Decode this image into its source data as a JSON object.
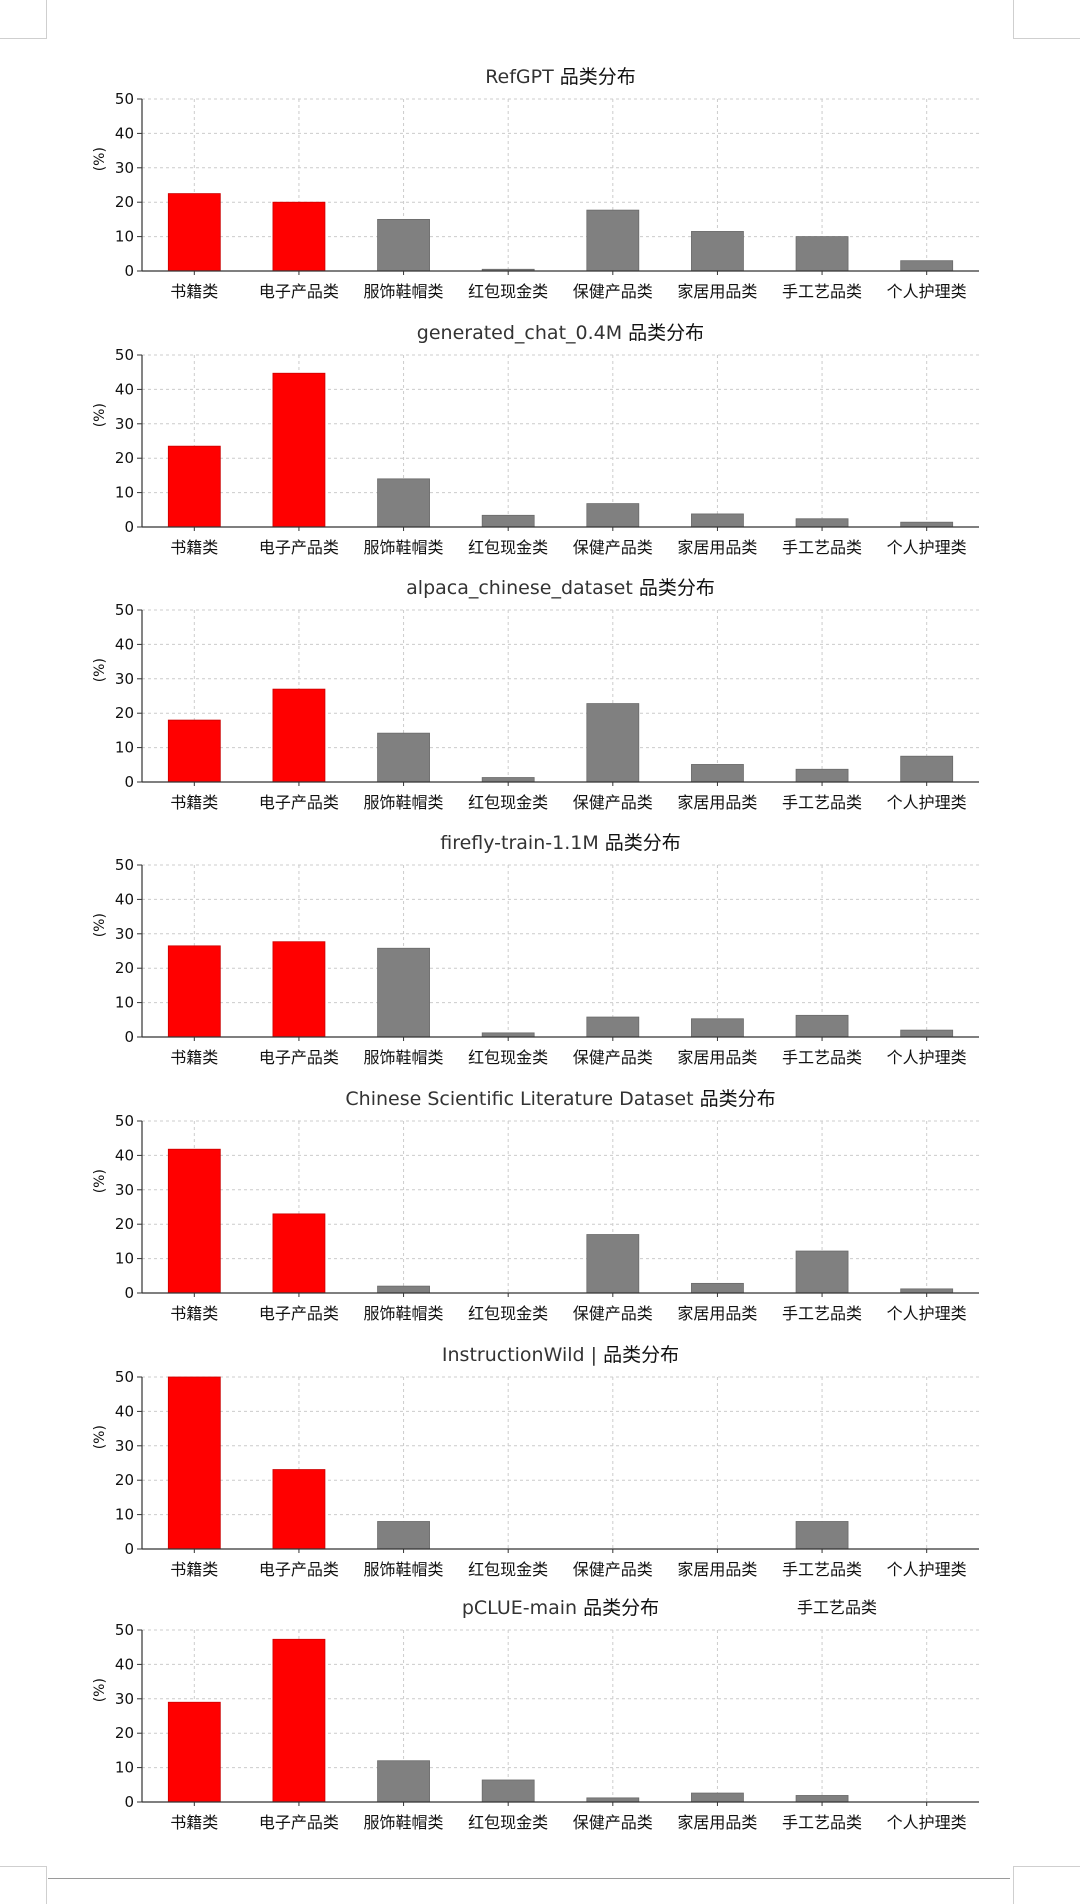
{
  "colors": {
    "highlight": "#ff0000",
    "bar": "#808080",
    "grid": "#cccccc",
    "axis": "#333333",
    "text": "#111111"
  },
  "title_suffix": "品类分布",
  "ylabel": "(%)",
  "stray_label": "手工艺品类",
  "chart_data": [
    {
      "type": "bar",
      "title": "RefGPT",
      "categories": [
        "书籍类",
        "电子产品类",
        "服饰鞋帽类",
        "红包现金类",
        "保健产品类",
        "家居用品类",
        "手工艺品类",
        "个人护理类"
      ],
      "values": [
        22.5,
        20,
        15,
        0.5,
        17.7,
        11.5,
        10,
        3
      ],
      "highlight": [
        0,
        1
      ],
      "ylim": [
        0,
        50
      ],
      "yticks": [
        0,
        10,
        20,
        30,
        40,
        50
      ],
      "ylabel": "(%)",
      "grid": true
    },
    {
      "type": "bar",
      "title": "generated_chat_0.4M",
      "categories": [
        "书籍类",
        "电子产品类",
        "服饰鞋帽类",
        "红包现金类",
        "保健产品类",
        "家居用品类",
        "手工艺品类",
        "个人护理类"
      ],
      "values": [
        23.5,
        44.7,
        14,
        3.4,
        6.8,
        3.8,
        2.4,
        1.4
      ],
      "highlight": [
        0,
        1
      ],
      "ylim": [
        0,
        50
      ],
      "yticks": [
        0,
        10,
        20,
        30,
        40,
        50
      ],
      "ylabel": "(%)",
      "grid": true
    },
    {
      "type": "bar",
      "title": "alpaca_chinese_dataset",
      "categories": [
        "书籍类",
        "电子产品类",
        "服饰鞋帽类",
        "红包现金类",
        "保健产品类",
        "家居用品类",
        "手工艺品类",
        "个人护理类"
      ],
      "values": [
        18,
        27,
        14.2,
        1.3,
        22.8,
        5.1,
        3.7,
        7.5
      ],
      "highlight": [
        0,
        1
      ],
      "ylim": [
        0,
        50
      ],
      "yticks": [
        0,
        10,
        20,
        30,
        40,
        50
      ],
      "ylabel": "(%)",
      "grid": true
    },
    {
      "type": "bar",
      "title": "firefly-train-1.1M",
      "categories": [
        "书籍类",
        "电子产品类",
        "服饰鞋帽类",
        "红包现金类",
        "保健产品类",
        "家居用品类",
        "手工艺品类",
        "个人护理类"
      ],
      "values": [
        26.5,
        27.7,
        25.8,
        1.2,
        5.8,
        5.3,
        6.3,
        2
      ],
      "highlight": [
        0,
        1
      ],
      "ylim": [
        0,
        50
      ],
      "yticks": [
        0,
        10,
        20,
        30,
        40,
        50
      ],
      "ylabel": "(%)",
      "grid": true
    },
    {
      "type": "bar",
      "title": "Chinese Scientific Literature Dataset",
      "categories": [
        "书籍类",
        "电子产品类",
        "服饰鞋帽类",
        "红包现金类",
        "保健产品类",
        "家居用品类",
        "手工艺品类",
        "个人护理类"
      ],
      "values": [
        41.8,
        23,
        2,
        0,
        17,
        2.8,
        12.2,
        1.2
      ],
      "highlight": [
        0,
        1
      ],
      "ylim": [
        0,
        50
      ],
      "yticks": [
        0,
        10,
        20,
        30,
        40,
        50
      ],
      "ylabel": "(%)",
      "grid": true
    },
    {
      "type": "bar",
      "title": "InstructionWild |",
      "categories": [
        "书籍类",
        "电子产品类",
        "服饰鞋帽类",
        "红包现金类",
        "保健产品类",
        "家居用品类",
        "手工艺品类",
        "个人护理类"
      ],
      "values": [
        50,
        23.1,
        8,
        0,
        0,
        0,
        8,
        0
      ],
      "highlight": [
        0,
        1
      ],
      "ylim": [
        0,
        50
      ],
      "yticks": [
        0,
        10,
        20,
        30,
        40,
        50
      ],
      "ylabel": "(%)",
      "grid": true
    },
    {
      "type": "bar",
      "title": "pCLUE-main",
      "categories": [
        "书籍类",
        "电子产品类",
        "服饰鞋帽类",
        "红包现金类",
        "保健产品类",
        "家居用品类",
        "手工艺品类",
        "个人护理类"
      ],
      "values": [
        29,
        47.3,
        12,
        6.4,
        1.2,
        2.6,
        1.9,
        0
      ],
      "highlight": [
        0,
        1
      ],
      "ylim": [
        0,
        50
      ],
      "yticks": [
        0,
        10,
        20,
        30,
        40,
        50
      ],
      "ylabel": "(%)",
      "grid": true
    }
  ]
}
